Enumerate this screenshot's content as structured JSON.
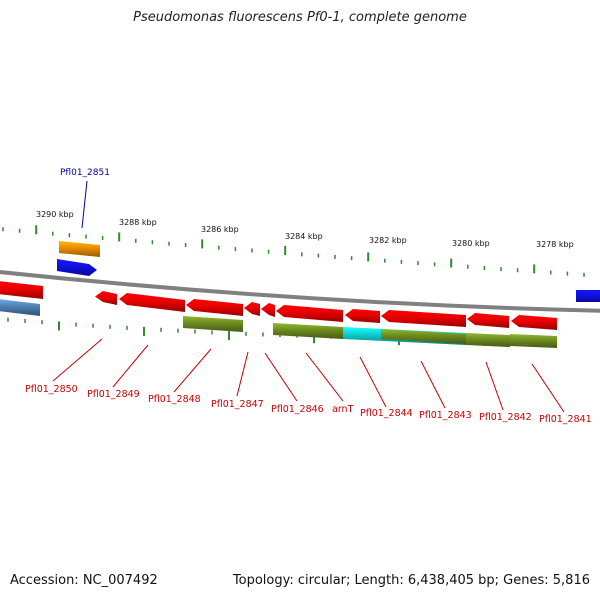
{
  "title": "Pseudomonas fluorescens Pf0-1, complete genome",
  "accession": "Accession: NC_007492",
  "summary": "Topology: circular; Length: 6,438,405 bp; Genes: 5,816",
  "scale_labels": [
    "3290 kbp",
    "3288 kbp",
    "3286 kbp",
    "3284 kbp",
    "3282 kbp",
    "3280 kbp",
    "3278 kbp"
  ],
  "forward_label": {
    "name": "Pfl01_2851",
    "color": "#0000aa"
  },
  "reverse_labels": [
    "Pfl01_2850",
    "Pfl01_2849",
    "Pfl01_2848",
    "Pfl01_2847",
    "Pfl01_2846",
    "arnT",
    "Pfl01_2844",
    "Pfl01_2843",
    "Pfl01_2842",
    "Pfl01_2841"
  ],
  "colors": {
    "reverse_cds": "#e80000",
    "forward_cds": "#1010e0",
    "forward_feature": "#e88a00",
    "olive_feature": "#6b8a1f",
    "cyan_feature": "#10c8c8",
    "steel_feature": "#4e7eb0",
    "backbone": "#808080",
    "ticks": "#2e8b2e",
    "label_text": "#cc0000"
  }
}
